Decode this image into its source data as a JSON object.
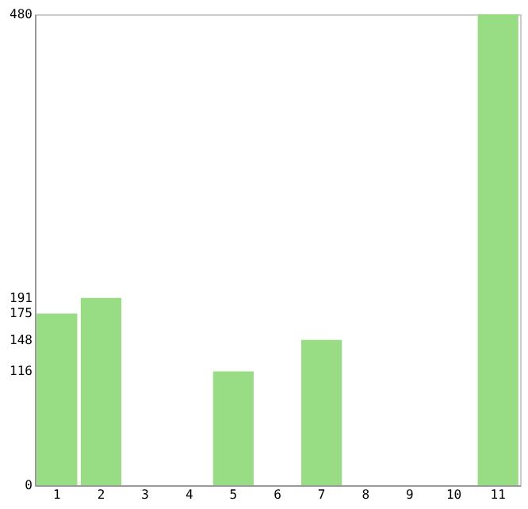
{
  "chart_data": {
    "type": "bar",
    "categories": [
      "1",
      "2",
      "3",
      "4",
      "5",
      "6",
      "7",
      "8",
      "9",
      "10",
      "11"
    ],
    "values": [
      175,
      191,
      0,
      0,
      116,
      0,
      148,
      0,
      0,
      0,
      480
    ],
    "color": "#98dc84",
    "ylim": [
      0,
      480
    ],
    "yticks": [
      0,
      116,
      148,
      175,
      191,
      480
    ],
    "grid": false
  }
}
